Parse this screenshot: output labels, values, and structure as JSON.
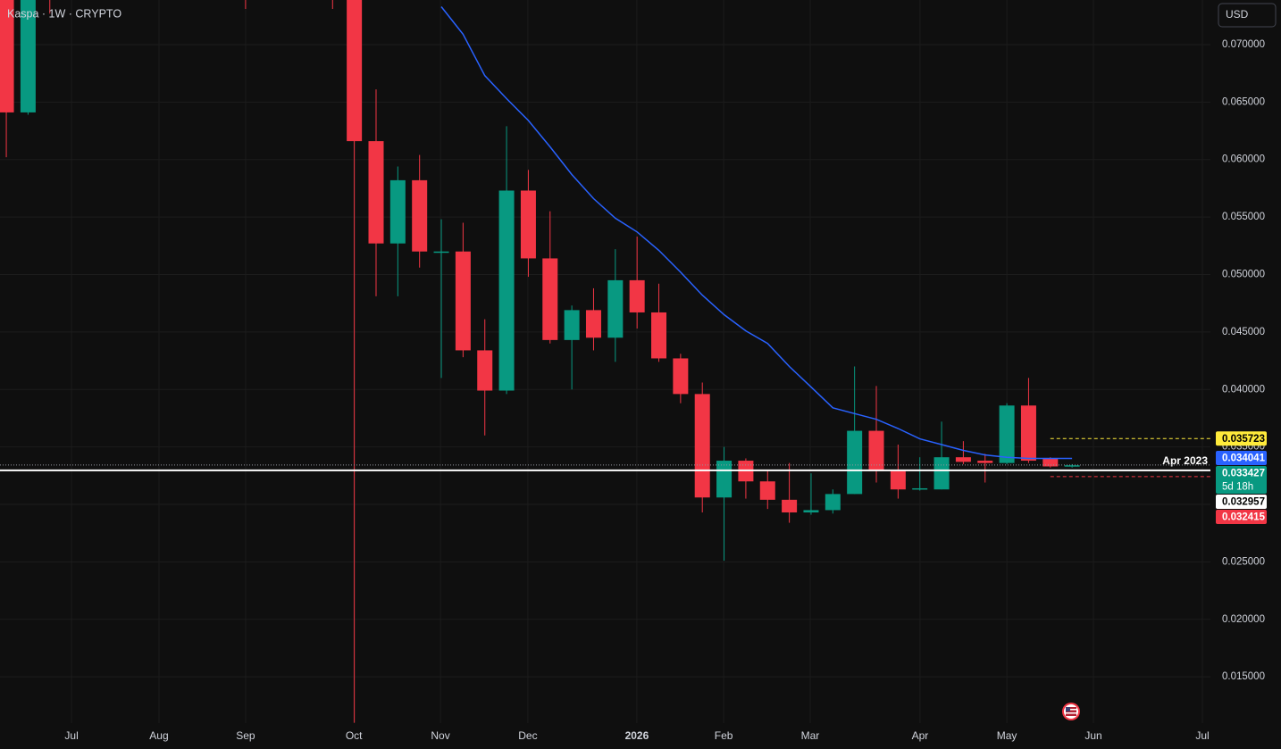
{
  "chart_data": {
    "type": "candlestick",
    "title": "Kaspa · 1W · CRYPTO",
    "currency": "USD",
    "up_color": "#089981",
    "down_color": "#f23645",
    "x": [
      0,
      1,
      2,
      11,
      15,
      16,
      17,
      18,
      19,
      20,
      21,
      22,
      23,
      24,
      25,
      26,
      27,
      28,
      29,
      30,
      31,
      32,
      33,
      34,
      35,
      36,
      37,
      38,
      39,
      40,
      41,
      42,
      43,
      44,
      45,
      46,
      47,
      48,
      49
    ],
    "open": [
      0.076,
      0.0641,
      0.085,
      0.082,
      0.085,
      0.08,
      0.0616,
      0.0527,
      0.0582,
      0.052,
      0.052,
      0.0434,
      0.0399,
      0.0573,
      0.0514,
      0.0443,
      0.0469,
      0.0445,
      0.0495,
      0.0467,
      0.0427,
      0.0396,
      0.0306,
      0.0338,
      0.032,
      0.0304,
      0.0293,
      0.0295,
      0.0309,
      0.0364,
      0.0329,
      0.0313,
      0.0313,
      0.0341,
      0.0338,
      0.0336,
      0.0386,
      0.034,
      0.0333
    ],
    "high": [
      0.079,
      0.08,
      0.088,
      0.085,
      0.088,
      0.082,
      0.0661,
      0.0594,
      0.0604,
      0.0548,
      0.0545,
      0.0461,
      0.0629,
      0.0591,
      0.0555,
      0.0473,
      0.0488,
      0.0522,
      0.0533,
      0.0492,
      0.0431,
      0.0406,
      0.035,
      0.034,
      0.0329,
      0.0336,
      0.0327,
      0.0313,
      0.042,
      0.0403,
      0.0352,
      0.0341,
      0.0372,
      0.0355,
      0.0344,
      0.0388,
      0.041,
      0.0341,
      0.0335
    ],
    "low": [
      0.0602,
      0.0639,
      0.0727,
      0.0731,
      0.0731,
      0.011,
      0.0481,
      0.0481,
      0.0506,
      0.041,
      0.0428,
      0.036,
      0.0396,
      0.0498,
      0.044,
      0.04,
      0.0434,
      0.0424,
      0.0453,
      0.0424,
      0.0388,
      0.0293,
      0.0251,
      0.0305,
      0.0296,
      0.0284,
      0.0291,
      0.0292,
      0.0309,
      0.0319,
      0.0305,
      0.0312,
      0.0313,
      0.0335,
      0.0319,
      0.0335,
      0.0336,
      0.0332,
      0.0332
    ],
    "close": [
      0.0641,
      0.078,
      0.08,
      0.078,
      0.08,
      0.0616,
      0.0527,
      0.0582,
      0.052,
      0.052,
      0.0434,
      0.0399,
      0.0573,
      0.0514,
      0.0443,
      0.0469,
      0.0445,
      0.0495,
      0.0467,
      0.0427,
      0.0396,
      0.0306,
      0.0338,
      0.032,
      0.0304,
      0.0293,
      0.0295,
      0.0309,
      0.0364,
      0.0329,
      0.0313,
      0.0314,
      0.0341,
      0.0337,
      0.0336,
      0.0386,
      0.0338,
      0.0333,
      0.0334
    ],
    "ma": {
      "color": "#2962ff",
      "x": [
        20,
        21,
        22,
        23,
        24,
        25,
        26,
        27,
        28,
        29,
        30,
        31,
        32,
        33,
        34,
        35,
        36,
        37,
        38,
        39,
        40,
        41,
        42,
        43,
        44,
        45,
        46,
        47,
        48,
        49
      ],
      "values": [
        0.0733,
        0.0709,
        0.0673,
        0.0653,
        0.0634,
        0.0611,
        0.0587,
        0.0566,
        0.0549,
        0.0537,
        0.0521,
        0.0502,
        0.0482,
        0.0465,
        0.0451,
        0.044,
        0.042,
        0.0402,
        0.0384,
        0.0379,
        0.0374,
        0.0366,
        0.0357,
        0.0352,
        0.0347,
        0.0343,
        0.0341,
        0.034,
        0.034,
        0.034
      ]
    },
    "xlim": [
      -0.29,
      55.36
    ],
    "xticks": [
      {
        "value": 3.0,
        "label": "Jul"
      },
      {
        "value": 7.02,
        "label": "Aug"
      },
      {
        "value": 11.0,
        "label": "Sep"
      },
      {
        "value": 15.98,
        "label": "Oct"
      },
      {
        "value": 19.96,
        "label": "Nov"
      },
      {
        "value": 23.98,
        "label": "Dec"
      },
      {
        "value": 28.99,
        "label": "2026"
      },
      {
        "value": 32.98,
        "label": "Feb"
      },
      {
        "value": 36.96,
        "label": "Mar"
      },
      {
        "value": 42.01,
        "label": "Apr"
      },
      {
        "value": 46.0,
        "label": "May"
      },
      {
        "value": 49.98,
        "label": "Jun"
      },
      {
        "value": 54.99,
        "label": "Jul"
      }
    ],
    "ylim": [
      0.01097,
      0.07388
    ],
    "yticks": [
      {
        "value": 0.015,
        "label": "0.015000"
      },
      {
        "value": 0.02,
        "label": "0.020000"
      },
      {
        "value": 0.025,
        "label": "0.025000"
      },
      {
        "value": 0.03,
        "label": "0.030000"
      },
      {
        "value": 0.035,
        "label": "0.035000"
      },
      {
        "value": 0.04,
        "label": "0.040000"
      },
      {
        "value": 0.045,
        "label": "0.045000"
      },
      {
        "value": 0.05,
        "label": "0.050000"
      },
      {
        "value": 0.055,
        "label": "0.055000"
      },
      {
        "value": 0.06,
        "label": "0.060000"
      },
      {
        "value": 0.065,
        "label": "0.065000"
      },
      {
        "value": 0.07,
        "label": "0.070000"
      }
    ],
    "grid": true,
    "hline": {
      "value": 0.032957,
      "label": "Apr 2023",
      "color": "#ffffff"
    },
    "countdown": "5d 18h",
    "price_labels": [
      {
        "value": 0.035723,
        "color": "#ffeb3b",
        "text_color": "#000000",
        "line": "dashed"
      },
      {
        "value": 0.034041,
        "color": "#2962ff",
        "text_color": "#ffffff"
      },
      {
        "value": 0.033427,
        "color": "#089981",
        "text_color": "#ffffff",
        "line": "dotted"
      },
      {
        "value": 0.032957,
        "color": "#ffffff",
        "text_color": "#000000"
      },
      {
        "value": 0.032415,
        "color": "#f23645",
        "text_color": "#ffffff",
        "line": "dashed"
      }
    ]
  }
}
